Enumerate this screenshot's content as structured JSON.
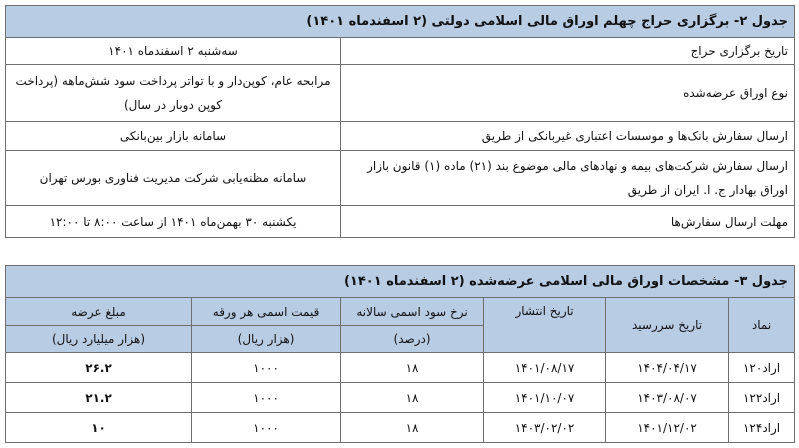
{
  "table2": {
    "caption": "جدول ۲- برگزاری حراج چهلم اوراق مالی اسلامی دولتی (۲ اسفندماه ۱۴۰۱)",
    "rows": [
      {
        "label": "تاریخ برگزاری حراج",
        "value": "سه‌شنبه ۲ اسفندماه ۱۴۰۱"
      },
      {
        "label": "نوع اوراق عرضه‌شده",
        "value": "مرابحه عام، کوپن‌دار و با تواتر پرداخت سود شش‌ماهه (پرداخت کوپن دوبار در سال)"
      },
      {
        "label": "ارسال سفارش بانک‌ها و موسسات اعتباری غیربانکی از طریق",
        "value": "سامانه بازار بین‌بانکی"
      },
      {
        "label": "ارسال سفارش شرکت‌های بیمه و نهادهای مالی موضوع بند (۲۱) ماده (۱) قانون بازار اوراق بهادار ج. ا. ایران از طریق",
        "value": "سامانه مظنه‌یابی شرکت مدیریت فناوری بورس تهران"
      },
      {
        "label": "مهلت ارسال سفارش‌ها",
        "value": "یکشنبه ۳۰ بهمن‌ماه ۱۴۰۱ از ساعت ۸:۰۰ تا ۱۲:۰۰"
      }
    ]
  },
  "table3": {
    "caption": "جدول ۳- مشخصات اوراق مالی اسلامی عرضه‌شده (۲ اسفندماه ۱۴۰۱)",
    "headers": {
      "symbol": "نماد",
      "maturity": "تاریخ سررسید",
      "issue": "تاریخ انتشار",
      "rate": "نرخ سود اسمی سالانه",
      "rate_unit": "(درصد)",
      "price": "قیمت اسمی هر ورقه",
      "price_unit": "(هزار ریال)",
      "amount": "مبلغ عرضه",
      "amount_unit": "(هزار میلیارد ریال)"
    },
    "rows": [
      {
        "symbol": "اراد۱۲۰",
        "maturity": "۱۴۰۴/۰۴/۱۷",
        "issue": "۱۴۰۱/۰۸/۱۷",
        "rate": "۱۸",
        "price": "۱۰۰۰",
        "amount": "۲۶.۲"
      },
      {
        "symbol": "اراد۱۲۲",
        "maturity": "۱۴۰۳/۰۸/۰۷",
        "issue": "۱۴۰۱/۱۰/۰۷",
        "rate": "۱۸",
        "price": "۱۰۰۰",
        "amount": "۲۱.۲"
      },
      {
        "symbol": "اراد۱۲۴",
        "maturity": "۱۴۰۱/۱۲/۰۲",
        "issue": "۱۴۰۳/۰۲/۰۲",
        "rate": "۱۸",
        "price": "۱۰۰۰",
        "amount": "۱۰"
      }
    ]
  },
  "colors": {
    "header_bg": "#b8cce4",
    "border": "#6f6f6f"
  }
}
